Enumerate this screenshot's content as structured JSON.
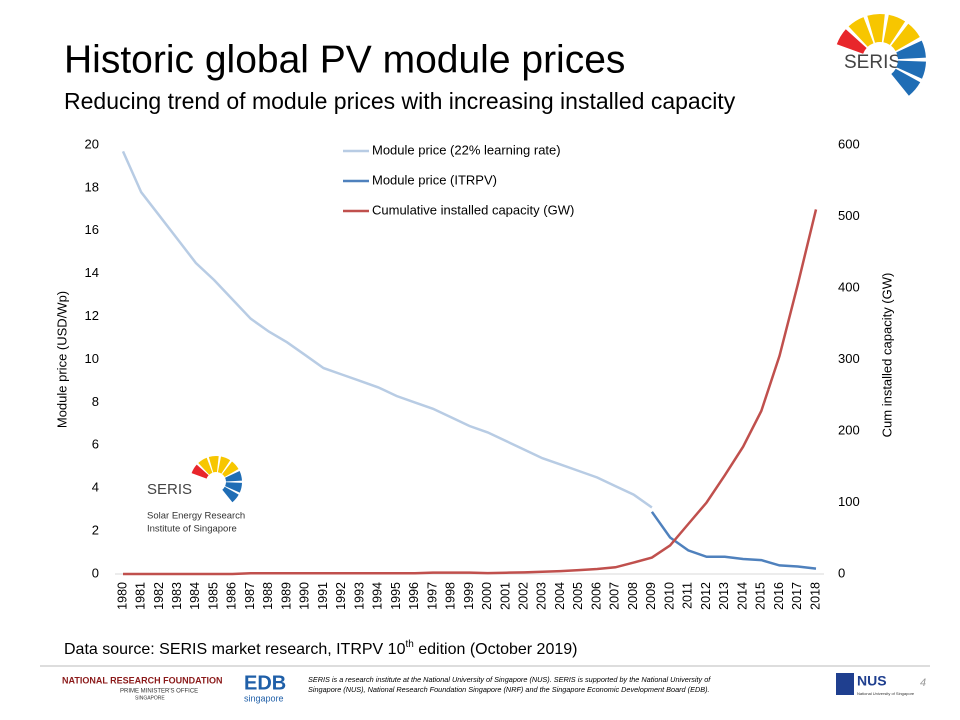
{
  "title": "Historic global PV module prices",
  "subtitle": "Reducing trend of module prices with increasing installed capacity",
  "chart_data": {
    "type": "line",
    "y_label": "Module price (USD/Wp)",
    "y2_label": "Cum installed capacity (GW)",
    "categories": [
      "1980",
      "1981",
      "1982",
      "1983",
      "1984",
      "1985",
      "1986",
      "1987",
      "1988",
      "1989",
      "1990",
      "1991",
      "1992",
      "1993",
      "1994",
      "1995",
      "1996",
      "1997",
      "1998",
      "1999",
      "2000",
      "2001",
      "2002",
      "2003",
      "2004",
      "2005",
      "2006",
      "2007",
      "2008",
      "2009",
      "2010",
      "2011",
      "2012",
      "2013",
      "2014",
      "2015",
      "2016",
      "2017",
      "2018"
    ],
    "ylim": [
      0,
      20
    ],
    "yticks": [
      0,
      2,
      4,
      6,
      8,
      10,
      12,
      14,
      16,
      18,
      20
    ],
    "y2lim": [
      0,
      600
    ],
    "y2ticks": [
      0,
      100,
      200,
      300,
      400,
      500,
      600
    ],
    "legend": "top",
    "series": [
      {
        "name": "Module price (22% learning rate)",
        "color": "#b8cce4",
        "values": [
          19.7,
          17.8,
          16.7,
          15.6,
          14.5,
          13.7,
          12.8,
          11.9,
          11.3,
          10.8,
          10.2,
          9.6,
          9.3,
          9.0,
          8.7,
          8.3,
          8.0,
          7.7,
          7.3,
          6.9,
          6.6,
          6.2,
          5.8,
          5.4,
          5.1,
          4.8,
          4.5,
          4.1,
          3.7,
          3.1,
          null,
          null,
          null,
          null,
          null,
          null,
          null,
          null,
          null
        ]
      },
      {
        "name": "Module price (ITRPV)",
        "color": "#4f81bd",
        "values": [
          null,
          null,
          null,
          null,
          null,
          null,
          null,
          null,
          null,
          null,
          null,
          null,
          null,
          null,
          null,
          null,
          null,
          null,
          null,
          null,
          null,
          null,
          null,
          null,
          null,
          null,
          null,
          null,
          null,
          2.9,
          1.7,
          1.1,
          0.8,
          0.8,
          0.7,
          0.65,
          0.4,
          0.35,
          0.25
        ]
      },
      {
        "name": "Cumulative installed capacity (GW)",
        "color": "#c0504d",
        "axis": "y2",
        "values": [
          0,
          0,
          0,
          0,
          0,
          0,
          0,
          1,
          1,
          1,
          1,
          1,
          1,
          1,
          1,
          1,
          1,
          2,
          2,
          2,
          1.3,
          1.8,
          2.3,
          3.1,
          4.1,
          5.4,
          7,
          9.4,
          16,
          23,
          40,
          70,
          100,
          138,
          178,
          228,
          305,
          405,
          510
        ]
      }
    ]
  },
  "source": {
    "prefix": "Data source: SERIS market research, ITRPV 10",
    "sup": "th",
    "suffix": " edition (October 2019)"
  },
  "logo": {
    "name": "SERIS",
    "line1": "Solar Energy Research",
    "line2": "Institute of Singapore"
  },
  "footer": {
    "nrf1": "NATIONAL RESEARCH FOUNDATION",
    "nrf2": "PRIME MINISTER'S OFFICE",
    "nrf3": "SINGAPORE",
    "edb": "EDB",
    "edb2": "singapore",
    "note1": "SERIS is a research institute at the National University of Singapore (NUS). SERIS is supported by the National University of",
    "note2": "Singapore (NUS), National Research Foundation Singapore (NRF) and the Singapore Economic Development Board (EDB).",
    "nus": "NUS",
    "nus2": "National University of Singapore",
    "page": "4"
  }
}
